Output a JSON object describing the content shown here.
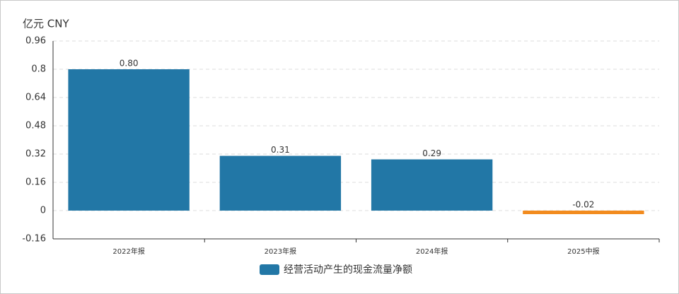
{
  "chart_data": {
    "type": "bar",
    "unit_label": "亿元  CNY",
    "categories": [
      "2022年报",
      "2023年报",
      "2024年报",
      "2025中报"
    ],
    "values": [
      0.8,
      0.31,
      0.29,
      -0.02
    ],
    "value_labels": [
      "0.80",
      "0.31",
      "0.29",
      "-0.02"
    ],
    "colors": [
      "#2277a6",
      "#2277a6",
      "#2277a6",
      "#f28b1e"
    ],
    "legend": {
      "name": "经营活动产生的现金流量净额",
      "color": "#2277a6"
    },
    "ylim": [
      -0.16,
      0.96
    ],
    "yticks": [
      -0.16,
      0,
      0.16,
      0.32,
      0.48,
      0.64,
      0.8,
      0.96
    ],
    "grid": true
  }
}
